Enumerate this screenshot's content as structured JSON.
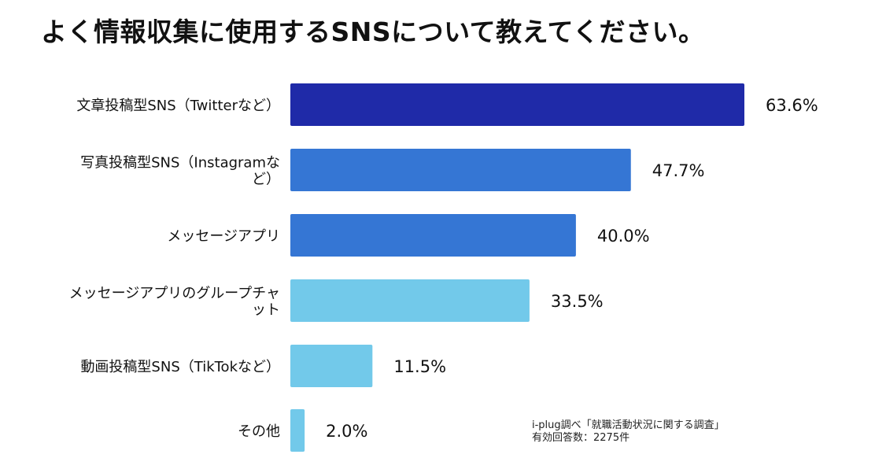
{
  "title": "よく情報収集に使用するSNSについて教えてください。",
  "footnote": {
    "source": "i-plug調べ「就職活動状況に関する調査」",
    "sample": "有効回答数：2275件"
  },
  "chart_data": {
    "type": "bar",
    "orientation": "horizontal",
    "categories": [
      "文章投稿型SNS（Twitterなど）",
      "写真投稿型SNS（Instagramなど）",
      "メッセージアプリ",
      "メッセージアプリのグループチャット",
      "動画投稿型SNS（TikTokなど）",
      "その他"
    ],
    "category_lines": [
      [
        "文章投稿型SNS（Twitterなど）"
      ],
      [
        "写真投稿型SNS（Instagramな",
        "ど）"
      ],
      [
        "メッセージアプリ"
      ],
      [
        "メッセージアプリのグループチャ",
        "ット"
      ],
      [
        "動画投稿型SNS（TikTokなど）"
      ],
      [
        "その他"
      ]
    ],
    "values": [
      63.6,
      47.7,
      40.0,
      33.5,
      11.5,
      2.0
    ],
    "value_labels": [
      "63.6%",
      "47.7%",
      "40.0%",
      "33.5%",
      "11.5%",
      "2.0%"
    ],
    "unit": "%",
    "bar_colors": [
      "#1f2aa8",
      "#3576d4",
      "#3576d4",
      "#72c9ea",
      "#72c9ea",
      "#72c9ea"
    ],
    "xlim": [
      0,
      100
    ],
    "grid": false,
    "legend": "none"
  }
}
